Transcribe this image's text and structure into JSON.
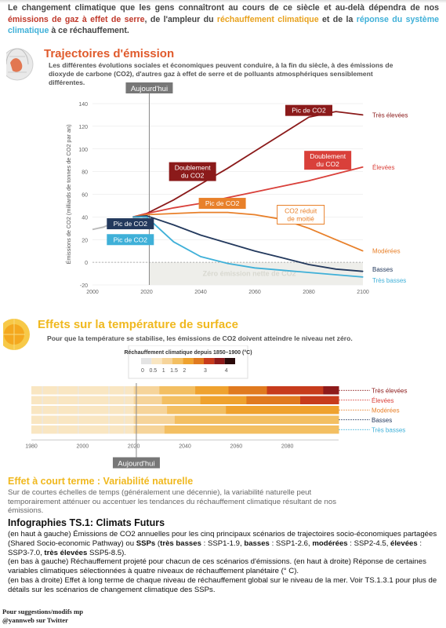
{
  "intro": {
    "p1": "Le changement climatique que les gens connaîtront au cours de ce siècle et au-delà dépendra de nos ",
    "h1": "émissions de gaz à effet de serre",
    "p2": ", de l'ampleur du ",
    "h2": "réchauffement climatique",
    "p3": " et de la ",
    "h3": "réponse du système climatique",
    "p4": " à ce réchauffement."
  },
  "section1": {
    "title": "Trajectoires d'émission",
    "description": "Les différentes évolutions sociales et économiques peuvent conduire, à la fin du siècle, à des émissions de dioxyde de carbone (CO2), d'autres gaz à effet de serre et de polluants atmosphériques sensiblement différentes."
  },
  "section2": {
    "title": "Effets sur la température de surface",
    "description": "Pour que la température se stabilise, les émissions de CO2 doivent atteindre le niveau net zéro."
  },
  "section3": {
    "title": "Effet à court terme : Variabilité naturelle",
    "description": "Sur de courtes échelles de temps (généralement une décennie), la variabilité naturelle peut temporairement atténuer ou accentuer les tendances du réchauffement climatique résultant de nos émissions."
  },
  "infographic": {
    "title": "Infographies TS.1: Climats Futurs",
    "p1a": "(en haut à gauche) Émissions de CO2 annuelles pour les cinq principaux scénarios de trajectoires socio-économiques partagées (Shared Socio-economic Pathway) ou ",
    "p1b": "SSPs",
    "p1c": " (",
    "p1d": "très basses",
    "p1e": " : SSP1-1.9, ",
    "p1f": "basses",
    "p1g": " : SSP1-2.6, ",
    "p1h": "modérées",
    "p1i": " : SSP2-4.5, ",
    "p1j": "élevées",
    "p1k": " : SSP3-7.0, ",
    "p1l": "très élevées",
    "p1m": " SSP5-8.5).",
    "p2": "(en bas à gauche) Réchauffement projeté pour chacun de ces scénarios d'émissions. (en haut à droite) Réponse de certaines variables climatiques sélectionnées à quatre niveaux de réchauffement planétaire (° C).",
    "p3": "(en bas à droite) Effet à long terme de chaque niveau de réchauffement global sur le niveau de la mer. Voir TS.1.3.1 pour plus de détails sur les scénarios de changement climatique des SSPs."
  },
  "credit": {
    "line1": "Pour suggestions/modifs mp",
    "line2": "@yannweb sur Twitter"
  },
  "colors": {
    "tres_elevees": "#8b1a1a",
    "elevees": "#d9403a",
    "moderees": "#e8802a",
    "basses": "#23395d",
    "tres_basses": "#3fb0d8",
    "historical": "#bbbbbb"
  },
  "chart_data": [
    {
      "type": "line",
      "title": "",
      "xlabel": "",
      "ylabel": "Émissions de CO2 (milliards de tonnes de CO2 par an)",
      "xlim": [
        2000,
        2100
      ],
      "ylim": [
        -20,
        140
      ],
      "xticks": [
        2000,
        2020,
        2040,
        2060,
        2080,
        2100
      ],
      "yticks": [
        -20,
        0,
        20,
        40,
        60,
        80,
        100,
        120,
        140
      ],
      "marker_label": "Aujourd'hui",
      "marker_x": 2021,
      "zero_band_label": "Zéro émission nette de CO2",
      "historical": {
        "x": [
          2000,
          2002,
          2004,
          2006,
          2008,
          2010,
          2012,
          2014,
          2016,
          2018,
          2020
        ],
        "y": [
          29,
          30,
          31,
          33,
          34,
          35,
          37,
          38,
          39,
          40,
          39
        ]
      },
      "series": [
        {
          "name": "Très élevées",
          "color": "#8b1a1a",
          "x": [
            2015,
            2020,
            2030,
            2040,
            2050,
            2060,
            2070,
            2080,
            2090,
            2100
          ],
          "y": [
            40,
            43,
            55,
            69,
            83,
            98,
            113,
            128,
            133,
            130
          ]
        },
        {
          "name": "Élevées",
          "color": "#d9403a",
          "x": [
            2015,
            2020,
            2030,
            2040,
            2050,
            2060,
            2070,
            2080,
            2090,
            2100
          ],
          "y": [
            40,
            43,
            48,
            52,
            57,
            62,
            67,
            72,
            78,
            84
          ]
        },
        {
          "name": "Modérées",
          "color": "#e8802a",
          "x": [
            2015,
            2020,
            2030,
            2040,
            2050,
            2060,
            2070,
            2080,
            2090,
            2100
          ],
          "y": [
            40,
            42,
            43,
            44,
            44,
            42,
            38,
            30,
            20,
            10
          ]
        },
        {
          "name": "Basses",
          "color": "#23395d",
          "x": [
            2015,
            2020,
            2030,
            2040,
            2050,
            2060,
            2070,
            2080,
            2090,
            2100
          ],
          "y": [
            40,
            41,
            33,
            24,
            17,
            10,
            4,
            -2,
            -6,
            -8
          ]
        },
        {
          "name": "Très basses",
          "color": "#3fb0d8",
          "x": [
            2015,
            2020,
            2030,
            2040,
            2050,
            2060,
            2070,
            2080,
            2090,
            2100
          ],
          "y": [
            40,
            40,
            18,
            5,
            -1,
            -5,
            -7,
            -9,
            -11,
            -13
          ]
        }
      ],
      "annotations": [
        {
          "text": "Pic de CO2",
          "x": 2080,
          "y": 134,
          "color": "#8b1a1a",
          "box": "filled"
        },
        {
          "text": "Doublement du CO2",
          "x": 2037,
          "y": 80,
          "color": "#8b1a1a",
          "box": "filled"
        },
        {
          "text": "Doublement du CO2",
          "x": 2087,
          "y": 90,
          "color": "#d9403a",
          "box": "filled"
        },
        {
          "text": "Pic de CO2",
          "x": 2048,
          "y": 52,
          "color": "#e8802a",
          "box": "filled"
        },
        {
          "text": "CO2 réduit de moitié",
          "x": 2077,
          "y": 42,
          "color": "#e8802a",
          "box": "outline"
        },
        {
          "text": "Pic de CO2",
          "x": 2014,
          "y": 34,
          "color": "#23395d",
          "box": "filled"
        },
        {
          "text": "Pic de CO2",
          "x": 2014,
          "y": 20,
          "color": "#3fb0d8",
          "box": "filled"
        }
      ]
    },
    {
      "type": "heatmap",
      "title": "Réchauffement climatique depuis 1850–1900 (°C)",
      "colorbar_ticks": [
        "0",
        "0.5",
        "1",
        "1.5",
        "2",
        "3",
        "4"
      ],
      "colorbar_colors": [
        "#e4e4e4",
        "#f9e6c2",
        "#f6d49a",
        "#f3bf62",
        "#efa22e",
        "#e07a1f",
        "#c73b1c",
        "#8e1a1a",
        "#2a0a0a"
      ],
      "xlim": [
        1980,
        2100
      ],
      "xticks": [
        1980,
        2000,
        2020,
        2040,
        2060,
        2080
      ],
      "marker_label": "Aujourd'hui",
      "marker_x": 2021,
      "rows": [
        {
          "name": "Très élevées",
          "color": "#8b1a1a",
          "segments": [
            [
              1980,
              2020,
              1
            ],
            [
              2020,
              2030,
              2
            ],
            [
              2030,
              2044,
              3
            ],
            [
              2044,
              2057,
              4
            ],
            [
              2057,
              2072,
              5
            ],
            [
              2072,
              2094,
              6
            ],
            [
              2094,
              2100,
              7
            ]
          ]
        },
        {
          "name": "Élevées",
          "color": "#d9403a",
          "segments": [
            [
              1980,
              2020,
              1
            ],
            [
              2020,
              2031,
              2
            ],
            [
              2031,
              2046,
              3
            ],
            [
              2046,
              2064,
              4
            ],
            [
              2064,
              2085,
              5
            ],
            [
              2085,
              2100,
              6
            ]
          ]
        },
        {
          "name": "Modérées",
          "color": "#e8802a",
          "segments": [
            [
              1980,
              2020,
              1
            ],
            [
              2020,
              2033,
              2
            ],
            [
              2033,
              2056,
              3
            ],
            [
              2056,
              2100,
              4
            ]
          ]
        },
        {
          "name": "Basses",
          "color": "#23395d",
          "segments": [
            [
              1980,
              2020,
              1
            ],
            [
              2020,
              2036,
              2
            ],
            [
              2036,
              2100,
              3
            ]
          ]
        },
        {
          "name": "Très basses",
          "color": "#3fb0d8",
          "segments": [
            [
              1980,
              2020,
              1
            ],
            [
              2020,
              2032,
              2
            ],
            [
              2032,
              2100,
              3
            ]
          ]
        }
      ]
    }
  ]
}
